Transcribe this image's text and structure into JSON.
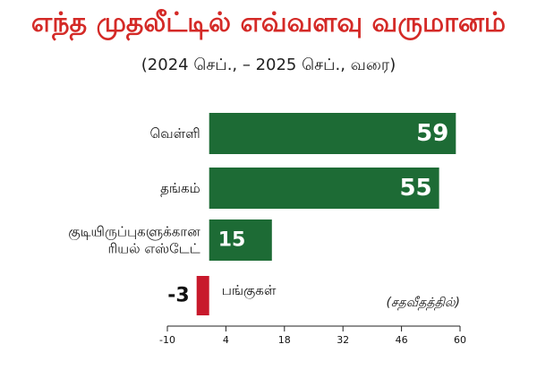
{
  "title": "எந்த முதலீட்டில் எவ்வளவு வருமானம்",
  "subtitle": "(2024 செப்., – 2025 செப்., வரை)",
  "unit_note": "(சதவீதத்தில்)",
  "colors": {
    "positive": "#1d6b35",
    "negative": "#c8192c",
    "title": "#d42a27"
  },
  "chart_data": {
    "type": "bar",
    "orientation": "horizontal",
    "categories": [
      [
        "வெள்ளி"
      ],
      [
        "தங்கம்"
      ],
      [
        "குடியிருப்புகளுக்கான",
        "ரியல் எஸ்டேட்"
      ],
      [
        "பங்குகள்"
      ]
    ],
    "values": [
      59,
      55,
      15,
      -3
    ],
    "value_labels": [
      "59",
      "55",
      "15",
      "-3"
    ],
    "xlim": [
      -10,
      60
    ],
    "xticks": [
      -10,
      4,
      18,
      32,
      46,
      60
    ],
    "grid": false
  }
}
